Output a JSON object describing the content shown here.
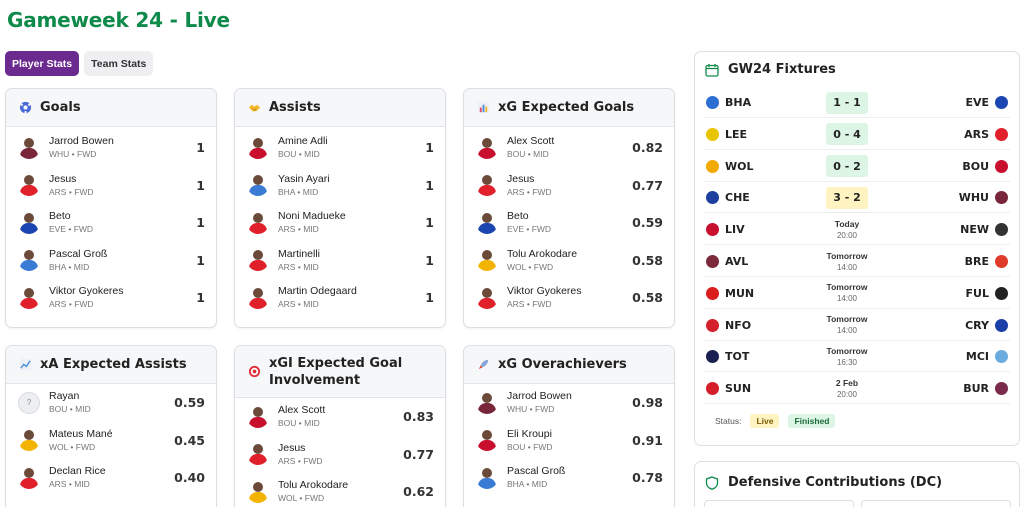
{
  "page": {
    "title": "Gameweek 24 - Live"
  },
  "tabs": [
    {
      "label": "Player Stats",
      "active": true
    },
    {
      "label": "Team Stats",
      "active": false
    }
  ],
  "cards": {
    "goals": {
      "title": "Goals",
      "icon": "soccer-ball-icon",
      "rows": [
        {
          "name": "Jarrod Bowen",
          "team": "WHU",
          "pos": "FWD",
          "value": "1",
          "kit": "#7a263a"
        },
        {
          "name": "Jesus",
          "team": "ARS",
          "pos": "FWD",
          "value": "1",
          "kit": "#e0202a"
        },
        {
          "name": "Beto",
          "team": "EVE",
          "pos": "FWD",
          "value": "1",
          "kit": "#1b45b0"
        },
        {
          "name": "Pascal Groß",
          "team": "BHA",
          "pos": "MID",
          "value": "1",
          "kit": "#3a7bd5"
        },
        {
          "name": "Viktor Gyokeres",
          "team": "ARS",
          "pos": "FWD",
          "value": "1",
          "kit": "#e0202a"
        }
      ]
    },
    "assists": {
      "title": "Assists",
      "icon": "handshake-icon",
      "rows": [
        {
          "name": "Amine Adli",
          "team": "BOU",
          "pos": "MID",
          "value": "1",
          "kit": "#c8102e"
        },
        {
          "name": "Yasin Ayari",
          "team": "BHA",
          "pos": "MID",
          "value": "1",
          "kit": "#3a7bd5"
        },
        {
          "name": "Noni Madueke",
          "team": "ARS",
          "pos": "MID",
          "value": "1",
          "kit": "#e0202a"
        },
        {
          "name": "Martinelli",
          "team": "ARS",
          "pos": "MID",
          "value": "1",
          "kit": "#e0202a"
        },
        {
          "name": "Martin Odegaard",
          "team": "ARS",
          "pos": "MID",
          "value": "1",
          "kit": "#e0202a"
        }
      ]
    },
    "xg": {
      "title": "xG Expected Goals",
      "icon": "bar-chart-icon",
      "rows": [
        {
          "name": "Alex Scott",
          "team": "BOU",
          "pos": "MID",
          "value": "0.82",
          "kit": "#c8102e"
        },
        {
          "name": "Jesus",
          "team": "ARS",
          "pos": "FWD",
          "value": "0.77",
          "kit": "#e0202a"
        },
        {
          "name": "Beto",
          "team": "EVE",
          "pos": "FWD",
          "value": "0.59",
          "kit": "#1b45b0"
        },
        {
          "name": "Tolu Arokodare",
          "team": "WOL",
          "pos": "FWD",
          "value": "0.58",
          "kit": "#f2b400"
        },
        {
          "name": "Viktor Gyokeres",
          "team": "ARS",
          "pos": "FWD",
          "value": "0.58",
          "kit": "#e0202a"
        }
      ]
    },
    "xa": {
      "title": "xA Expected Assists",
      "icon": "trend-chart-icon",
      "rows": [
        {
          "name": "Rayan",
          "team": "BOU",
          "pos": "MID",
          "value": "0.59",
          "kit": "",
          "unknown": "?"
        },
        {
          "name": "Mateus Mané",
          "team": "WOL",
          "pos": "FWD",
          "value": "0.45",
          "kit": "#f2b400"
        },
        {
          "name": "Declan Rice",
          "team": "ARS",
          "pos": "MID",
          "value": "0.40",
          "kit": "#e0202a"
        }
      ]
    },
    "xgi": {
      "title": "xGI Expected Goal Involvement",
      "icon": "target-icon",
      "rows": [
        {
          "name": "Alex Scott",
          "team": "BOU",
          "pos": "MID",
          "value": "0.83",
          "kit": "#c8102e"
        },
        {
          "name": "Jesus",
          "team": "ARS",
          "pos": "FWD",
          "value": "0.77",
          "kit": "#e0202a"
        },
        {
          "name": "Tolu Arokodare",
          "team": "WOL",
          "pos": "FWD",
          "value": "0.62",
          "kit": "#f2b400"
        }
      ]
    },
    "overachievers": {
      "title": "xG Overachievers",
      "icon": "rocket-icon",
      "rows": [
        {
          "name": "Jarrod Bowen",
          "team": "WHU",
          "pos": "FWD",
          "value": "0.98",
          "kit": "#7a263a"
        },
        {
          "name": "Eli Kroupi",
          "team": "BOU",
          "pos": "FWD",
          "value": "0.91",
          "kit": "#c8102e"
        },
        {
          "name": "Pascal Groß",
          "team": "BHA",
          "pos": "MID",
          "value": "0.78",
          "kit": "#3a7bd5"
        }
      ]
    }
  },
  "fixtures": {
    "title": "GW24 Fixtures",
    "icon": "calendar-icon",
    "rows": [
      {
        "home": "BHA",
        "away": "EVE",
        "score": "1 - 1",
        "state": "finished",
        "home_color": "#2a6fd1",
        "away_color": "#1b45b0"
      },
      {
        "home": "LEE",
        "away": "ARS",
        "score": "0 - 4",
        "state": "finished",
        "home_color": "#e9c400",
        "away_color": "#e0202a"
      },
      {
        "home": "WOL",
        "away": "BOU",
        "score": "0 - 2",
        "state": "finished",
        "home_color": "#f2a900",
        "away_color": "#c8102e"
      },
      {
        "home": "CHE",
        "away": "WHU",
        "score": "3 - 2",
        "state": "live",
        "home_color": "#1f3f9e",
        "away_color": "#7a263a"
      },
      {
        "home": "LIV",
        "away": "NEW",
        "day": "Today",
        "time": "20:00",
        "state": "upcoming",
        "home_color": "#c8102e",
        "away_color": "#333333"
      },
      {
        "home": "AVL",
        "away": "BRE",
        "day": "Tomorrow",
        "time": "14:00",
        "state": "upcoming",
        "home_color": "#7a2a3a",
        "away_color": "#e03a2a"
      },
      {
        "home": "MUN",
        "away": "FUL",
        "day": "Tomorrow",
        "time": "14:00",
        "state": "upcoming",
        "home_color": "#da1e1e",
        "away_color": "#222222"
      },
      {
        "home": "NFO",
        "away": "CRY",
        "day": "Tomorrow",
        "time": "14:00",
        "state": "upcoming",
        "home_color": "#d4202a",
        "away_color": "#1b3fa8"
      },
      {
        "home": "TOT",
        "away": "MCI",
        "day": "Tomorrow",
        "time": "16:30",
        "state": "upcoming",
        "home_color": "#1a2050",
        "away_color": "#6cabdd"
      },
      {
        "home": "SUN",
        "away": "BUR",
        "day": "2 Feb",
        "time": "20:00",
        "state": "upcoming",
        "home_color": "#d41e2a",
        "away_color": "#7a2a4a"
      }
    ],
    "status_label": "Status:",
    "live_label": "Live",
    "finished_label": "Finished"
  },
  "defensive": {
    "title": "Defensive Contributions (DC)",
    "icon": "shield-icon"
  },
  "colors": {
    "accent": "#0e8a4a",
    "tab_active": "#6a2a8e",
    "live": "#fff3c2",
    "finished": "#dcf5e4"
  }
}
